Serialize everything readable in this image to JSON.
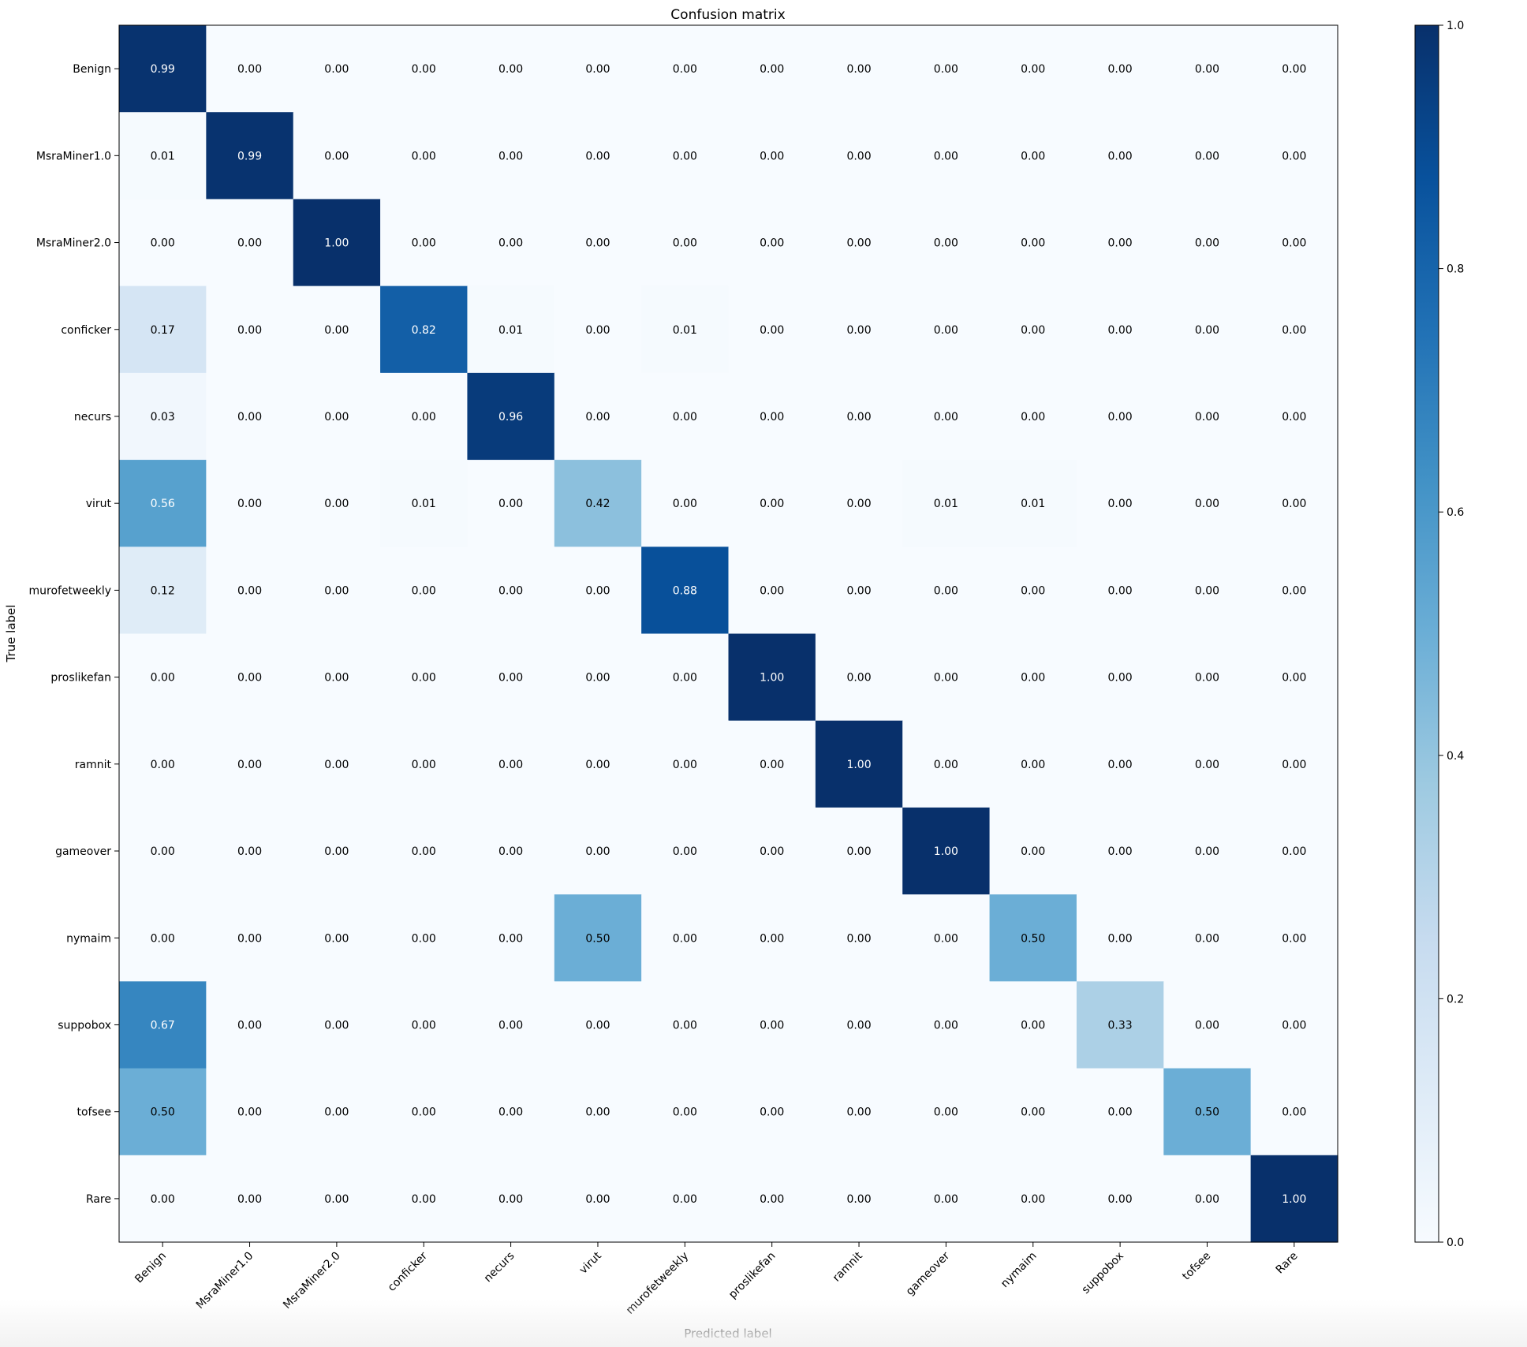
{
  "chart_data": {
    "type": "heatmap",
    "title": "Confusion matrix",
    "xlabel": "Predicted label",
    "ylabel": "True label",
    "labels": [
      "Benign",
      "MsraMiner1.0",
      "MsraMiner2.0",
      "conficker",
      "necurs",
      "virut",
      "murofetweekly",
      "proslikefan",
      "ramnit",
      "gameover",
      "nymaim",
      "suppobox",
      "tofsee",
      "Rare"
    ],
    "values": [
      [
        0.99,
        0.0,
        0.0,
        0.0,
        0.0,
        0.0,
        0.0,
        0.0,
        0.0,
        0.0,
        0.0,
        0.0,
        0.0,
        0.0
      ],
      [
        0.01,
        0.99,
        0.0,
        0.0,
        0.0,
        0.0,
        0.0,
        0.0,
        0.0,
        0.0,
        0.0,
        0.0,
        0.0,
        0.0
      ],
      [
        0.0,
        0.0,
        1.0,
        0.0,
        0.0,
        0.0,
        0.0,
        0.0,
        0.0,
        0.0,
        0.0,
        0.0,
        0.0,
        0.0
      ],
      [
        0.17,
        0.0,
        0.0,
        0.82,
        0.01,
        0.0,
        0.01,
        0.0,
        0.0,
        0.0,
        0.0,
        0.0,
        0.0,
        0.0
      ],
      [
        0.03,
        0.0,
        0.0,
        0.0,
        0.96,
        0.0,
        0.0,
        0.0,
        0.0,
        0.0,
        0.0,
        0.0,
        0.0,
        0.0
      ],
      [
        0.56,
        0.0,
        0.0,
        0.01,
        0.0,
        0.42,
        0.0,
        0.0,
        0.0,
        0.01,
        0.01,
        0.0,
        0.0,
        0.0
      ],
      [
        0.12,
        0.0,
        0.0,
        0.0,
        0.0,
        0.0,
        0.88,
        0.0,
        0.0,
        0.0,
        0.0,
        0.0,
        0.0,
        0.0
      ],
      [
        0.0,
        0.0,
        0.0,
        0.0,
        0.0,
        0.0,
        0.0,
        1.0,
        0.0,
        0.0,
        0.0,
        0.0,
        0.0,
        0.0
      ],
      [
        0.0,
        0.0,
        0.0,
        0.0,
        0.0,
        0.0,
        0.0,
        0.0,
        1.0,
        0.0,
        0.0,
        0.0,
        0.0,
        0.0
      ],
      [
        0.0,
        0.0,
        0.0,
        0.0,
        0.0,
        0.0,
        0.0,
        0.0,
        0.0,
        1.0,
        0.0,
        0.0,
        0.0,
        0.0
      ],
      [
        0.0,
        0.0,
        0.0,
        0.0,
        0.0,
        0.5,
        0.0,
        0.0,
        0.0,
        0.0,
        0.5,
        0.0,
        0.0,
        0.0
      ],
      [
        0.67,
        0.0,
        0.0,
        0.0,
        0.0,
        0.0,
        0.0,
        0.0,
        0.0,
        0.0,
        0.0,
        0.33,
        0.0,
        0.0
      ],
      [
        0.5,
        0.0,
        0.0,
        0.0,
        0.0,
        0.0,
        0.0,
        0.0,
        0.0,
        0.0,
        0.0,
        0.0,
        0.5,
        0.0
      ],
      [
        0.0,
        0.0,
        0.0,
        0.0,
        0.0,
        0.0,
        0.0,
        0.0,
        0.0,
        0.0,
        0.0,
        0.0,
        0.0,
        1.0
      ]
    ],
    "colorbar": {
      "range": [
        0.0,
        1.0
      ],
      "ticks": [
        "0.0",
        "0.2",
        "0.4",
        "0.6",
        "0.8",
        "1.0"
      ],
      "colormap": "Blues"
    },
    "grid": false
  },
  "colors": {
    "low": "#f7fbff",
    "high": "#08306b",
    "text_dark": "#000000",
    "text_light": "#ffffff"
  }
}
